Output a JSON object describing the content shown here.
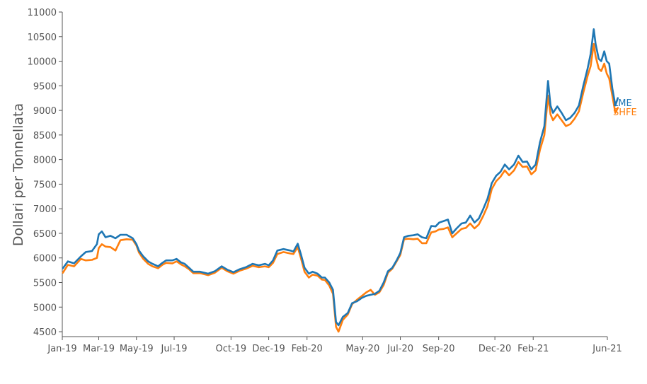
{
  "colors": {
    "lme": "#1f77b4",
    "shfe": "#ff7f0e",
    "axis": "#555555"
  },
  "chart_data": {
    "type": "line",
    "title": "",
    "xlabel": "",
    "ylabel": "Dollari per Tonnellata",
    "x_range": [
      "2019-01-01",
      "2021-06-01"
    ],
    "ylim": [
      4400,
      11000
    ],
    "grid": false,
    "legend": "end-of-line labels",
    "yticks": [
      4500,
      5000,
      5500,
      6000,
      6500,
      7000,
      7500,
      8000,
      8500,
      9000,
      9500,
      10000,
      10500,
      11000
    ],
    "xticks": [
      {
        "date": "2019-01-01",
        "label": "Jan-19"
      },
      {
        "date": "2019-03-01",
        "label": "Mar-19"
      },
      {
        "date": "2019-05-01",
        "label": "May-19"
      },
      {
        "date": "2019-07-01",
        "label": "Jul-19"
      },
      {
        "date": "2019-10-01",
        "label": "Oct-19"
      },
      {
        "date": "2019-12-01",
        "label": "Dec-19"
      },
      {
        "date": "2020-02-01",
        "label": "Feb-20"
      },
      {
        "date": "2020-05-01",
        "label": "May-20"
      },
      {
        "date": "2020-07-01",
        "label": "Jul-20"
      },
      {
        "date": "2020-09-01",
        "label": "Sep-20"
      },
      {
        "date": "2020-12-01",
        "label": "Dec-20"
      },
      {
        "date": "2021-02-01",
        "label": "Feb-21"
      },
      {
        "date": "2021-06-01",
        "label": "Jun-21"
      }
    ],
    "series": [
      {
        "name": "LME",
        "points": [
          [
            "2019-01-02",
            5790
          ],
          [
            "2019-01-10",
            5930
          ],
          [
            "2019-01-20",
            5890
          ],
          [
            "2019-01-31",
            6030
          ],
          [
            "2019-02-08",
            6120
          ],
          [
            "2019-02-18",
            6140
          ],
          [
            "2019-02-26",
            6280
          ],
          [
            "2019-03-01",
            6480
          ],
          [
            "2019-03-06",
            6540
          ],
          [
            "2019-03-12",
            6420
          ],
          [
            "2019-03-20",
            6450
          ],
          [
            "2019-03-28",
            6400
          ],
          [
            "2019-04-05",
            6470
          ],
          [
            "2019-04-15",
            6470
          ],
          [
            "2019-04-25",
            6400
          ],
          [
            "2019-05-01",
            6280
          ],
          [
            "2019-05-05",
            6150
          ],
          [
            "2019-05-12",
            6030
          ],
          [
            "2019-05-20",
            5930
          ],
          [
            "2019-05-27",
            5880
          ],
          [
            "2019-06-05",
            5830
          ],
          [
            "2019-06-12",
            5900
          ],
          [
            "2019-06-18",
            5950
          ],
          [
            "2019-06-28",
            5950
          ],
          [
            "2019-07-05",
            5980
          ],
          [
            "2019-07-12",
            5910
          ],
          [
            "2019-07-18",
            5880
          ],
          [
            "2019-07-25",
            5800
          ],
          [
            "2019-08-01",
            5720
          ],
          [
            "2019-08-12",
            5720
          ],
          [
            "2019-08-25",
            5680
          ],
          [
            "2019-09-05",
            5730
          ],
          [
            "2019-09-16",
            5830
          ],
          [
            "2019-09-25",
            5760
          ],
          [
            "2019-10-05",
            5710
          ],
          [
            "2019-10-15",
            5770
          ],
          [
            "2019-10-25",
            5810
          ],
          [
            "2019-11-05",
            5880
          ],
          [
            "2019-11-15",
            5850
          ],
          [
            "2019-11-25",
            5880
          ],
          [
            "2019-12-01",
            5850
          ],
          [
            "2019-12-08",
            5950
          ],
          [
            "2019-12-15",
            6150
          ],
          [
            "2019-12-25",
            6180
          ],
          [
            "2020-01-05",
            6150
          ],
          [
            "2020-01-10",
            6130
          ],
          [
            "2020-01-17",
            6290
          ],
          [
            "2020-01-22",
            6080
          ],
          [
            "2020-01-28",
            5800
          ],
          [
            "2020-02-04",
            5680
          ],
          [
            "2020-02-10",
            5720
          ],
          [
            "2020-02-18",
            5680
          ],
          [
            "2020-02-25",
            5600
          ],
          [
            "2020-03-01",
            5600
          ],
          [
            "2020-03-08",
            5500
          ],
          [
            "2020-03-14",
            5350
          ],
          [
            "2020-03-19",
            4700
          ],
          [
            "2020-03-23",
            4630
          ],
          [
            "2020-03-30",
            4800
          ],
          [
            "2020-04-07",
            4880
          ],
          [
            "2020-04-14",
            5080
          ],
          [
            "2020-04-22",
            5120
          ],
          [
            "2020-04-30",
            5190
          ],
          [
            "2020-05-07",
            5230
          ],
          [
            "2020-05-14",
            5250
          ],
          [
            "2020-05-21",
            5270
          ],
          [
            "2020-05-28",
            5330
          ],
          [
            "2020-06-04",
            5500
          ],
          [
            "2020-06-11",
            5730
          ],
          [
            "2020-06-18",
            5800
          ],
          [
            "2020-06-25",
            5950
          ],
          [
            "2020-07-01",
            6100
          ],
          [
            "2020-07-07",
            6420
          ],
          [
            "2020-07-14",
            6450
          ],
          [
            "2020-07-22",
            6460
          ],
          [
            "2020-07-29",
            6480
          ],
          [
            "2020-08-05",
            6420
          ],
          [
            "2020-08-12",
            6400
          ],
          [
            "2020-08-20",
            6650
          ],
          [
            "2020-08-27",
            6640
          ],
          [
            "2020-09-02",
            6720
          ],
          [
            "2020-09-09",
            6750
          ],
          [
            "2020-09-16",
            6780
          ],
          [
            "2020-09-23",
            6500
          ],
          [
            "2020-09-30",
            6600
          ],
          [
            "2020-10-08",
            6700
          ],
          [
            "2020-10-15",
            6720
          ],
          [
            "2020-10-22",
            6860
          ],
          [
            "2020-10-29",
            6720
          ],
          [
            "2020-11-05",
            6800
          ],
          [
            "2020-11-12",
            6990
          ],
          [
            "2020-11-19",
            7200
          ],
          [
            "2020-11-26",
            7520
          ],
          [
            "2020-12-03",
            7670
          ],
          [
            "2020-12-10",
            7750
          ],
          [
            "2020-12-17",
            7900
          ],
          [
            "2020-12-24",
            7800
          ],
          [
            "2021-01-01",
            7900
          ],
          [
            "2021-01-08",
            8080
          ],
          [
            "2021-01-15",
            7950
          ],
          [
            "2021-01-22",
            7960
          ],
          [
            "2021-01-29",
            7800
          ],
          [
            "2021-02-05",
            7900
          ],
          [
            "2021-02-12",
            8350
          ],
          [
            "2021-02-19",
            8680
          ],
          [
            "2021-02-25",
            9600
          ],
          [
            "2021-03-01",
            9100
          ],
          [
            "2021-03-05",
            8950
          ],
          [
            "2021-03-12",
            9080
          ],
          [
            "2021-03-19",
            8950
          ],
          [
            "2021-03-26",
            8800
          ],
          [
            "2021-04-02",
            8850
          ],
          [
            "2021-04-09",
            8950
          ],
          [
            "2021-04-16",
            9100
          ],
          [
            "2021-04-23",
            9500
          ],
          [
            "2021-04-30",
            9850
          ],
          [
            "2021-05-05",
            10150
          ],
          [
            "2021-05-10",
            10650
          ],
          [
            "2021-05-13",
            10350
          ],
          [
            "2021-05-18",
            10050
          ],
          [
            "2021-05-22",
            10000
          ],
          [
            "2021-05-27",
            10200
          ],
          [
            "2021-05-31",
            10000
          ],
          [
            "2021-06-04",
            9950
          ],
          [
            "2021-06-09",
            9450
          ],
          [
            "2021-06-14",
            9100
          ],
          [
            "2021-06-18",
            9250
          ]
        ]
      },
      {
        "name": "SHFE",
        "points": [
          [
            "2019-01-02",
            5700
          ],
          [
            "2019-01-10",
            5860
          ],
          [
            "2019-01-20",
            5830
          ],
          [
            "2019-01-31",
            5980
          ],
          [
            "2019-02-08",
            5950
          ],
          [
            "2019-02-18",
            5960
          ],
          [
            "2019-02-26",
            6000
          ],
          [
            "2019-03-01",
            6200
          ],
          [
            "2019-03-06",
            6280
          ],
          [
            "2019-03-12",
            6230
          ],
          [
            "2019-03-20",
            6220
          ],
          [
            "2019-03-28",
            6150
          ],
          [
            "2019-04-05",
            6360
          ],
          [
            "2019-04-15",
            6380
          ],
          [
            "2019-04-25",
            6370
          ],
          [
            "2019-05-01",
            6250
          ],
          [
            "2019-05-05",
            6110
          ],
          [
            "2019-05-12",
            5980
          ],
          [
            "2019-05-20",
            5880
          ],
          [
            "2019-05-27",
            5830
          ],
          [
            "2019-06-05",
            5790
          ],
          [
            "2019-06-12",
            5860
          ],
          [
            "2019-06-18",
            5900
          ],
          [
            "2019-06-28",
            5890
          ],
          [
            "2019-07-05",
            5930
          ],
          [
            "2019-07-12",
            5870
          ],
          [
            "2019-07-18",
            5830
          ],
          [
            "2019-07-25",
            5770
          ],
          [
            "2019-08-01",
            5690
          ],
          [
            "2019-08-12",
            5690
          ],
          [
            "2019-08-25",
            5650
          ],
          [
            "2019-09-05",
            5700
          ],
          [
            "2019-09-16",
            5800
          ],
          [
            "2019-09-25",
            5730
          ],
          [
            "2019-10-05",
            5680
          ],
          [
            "2019-10-15",
            5740
          ],
          [
            "2019-10-25",
            5780
          ],
          [
            "2019-11-05",
            5840
          ],
          [
            "2019-11-15",
            5810
          ],
          [
            "2019-11-25",
            5830
          ],
          [
            "2019-12-01",
            5810
          ],
          [
            "2019-12-08",
            5900
          ],
          [
            "2019-12-15",
            6080
          ],
          [
            "2019-12-25",
            6120
          ],
          [
            "2020-01-05",
            6090
          ],
          [
            "2020-01-10",
            6080
          ],
          [
            "2020-01-17",
            6220
          ],
          [
            "2020-01-22",
            6000
          ],
          [
            "2020-01-28",
            5720
          ],
          [
            "2020-02-04",
            5600
          ],
          [
            "2020-02-10",
            5660
          ],
          [
            "2020-02-18",
            5640
          ],
          [
            "2020-02-25",
            5560
          ],
          [
            "2020-03-01",
            5550
          ],
          [
            "2020-03-08",
            5440
          ],
          [
            "2020-03-14",
            5270
          ],
          [
            "2020-03-19",
            4600
          ],
          [
            "2020-03-23",
            4500
          ],
          [
            "2020-03-30",
            4740
          ],
          [
            "2020-04-07",
            4850
          ],
          [
            "2020-04-14",
            5060
          ],
          [
            "2020-04-22",
            5150
          ],
          [
            "2020-04-30",
            5230
          ],
          [
            "2020-05-07",
            5300
          ],
          [
            "2020-05-14",
            5350
          ],
          [
            "2020-05-21",
            5250
          ],
          [
            "2020-05-28",
            5300
          ],
          [
            "2020-06-04",
            5450
          ],
          [
            "2020-06-11",
            5700
          ],
          [
            "2020-06-18",
            5780
          ],
          [
            "2020-06-25",
            5930
          ],
          [
            "2020-07-01",
            6060
          ],
          [
            "2020-07-07",
            6380
          ],
          [
            "2020-07-14",
            6390
          ],
          [
            "2020-07-22",
            6380
          ],
          [
            "2020-07-29",
            6390
          ],
          [
            "2020-08-05",
            6300
          ],
          [
            "2020-08-12",
            6300
          ],
          [
            "2020-08-20",
            6520
          ],
          [
            "2020-08-27",
            6540
          ],
          [
            "2020-09-02",
            6580
          ],
          [
            "2020-09-09",
            6590
          ],
          [
            "2020-09-16",
            6620
          ],
          [
            "2020-09-23",
            6420
          ],
          [
            "2020-09-30",
            6500
          ],
          [
            "2020-10-08",
            6590
          ],
          [
            "2020-10-15",
            6610
          ],
          [
            "2020-10-22",
            6700
          ],
          [
            "2020-10-29",
            6600
          ],
          [
            "2020-11-05",
            6680
          ],
          [
            "2020-11-12",
            6850
          ],
          [
            "2020-11-19",
            7050
          ],
          [
            "2020-11-26",
            7400
          ],
          [
            "2020-12-03",
            7560
          ],
          [
            "2020-12-10",
            7650
          ],
          [
            "2020-12-17",
            7780
          ],
          [
            "2020-12-24",
            7680
          ],
          [
            "2021-01-01",
            7780
          ],
          [
            "2021-01-08",
            7950
          ],
          [
            "2021-01-15",
            7850
          ],
          [
            "2021-01-22",
            7860
          ],
          [
            "2021-01-29",
            7700
          ],
          [
            "2021-02-05",
            7780
          ],
          [
            "2021-02-12",
            8200
          ],
          [
            "2021-02-19",
            8500
          ],
          [
            "2021-02-25",
            9300
          ],
          [
            "2021-03-01",
            8920
          ],
          [
            "2021-03-05",
            8800
          ],
          [
            "2021-03-12",
            8920
          ],
          [
            "2021-03-19",
            8800
          ],
          [
            "2021-03-26",
            8680
          ],
          [
            "2021-04-02",
            8720
          ],
          [
            "2021-04-09",
            8830
          ],
          [
            "2021-04-16",
            8980
          ],
          [
            "2021-04-23",
            9360
          ],
          [
            "2021-04-30",
            9700
          ],
          [
            "2021-05-05",
            9900
          ],
          [
            "2021-05-10",
            10350
          ],
          [
            "2021-05-13",
            10100
          ],
          [
            "2021-05-18",
            9850
          ],
          [
            "2021-05-22",
            9800
          ],
          [
            "2021-05-27",
            9950
          ],
          [
            "2021-05-31",
            9750
          ],
          [
            "2021-06-04",
            9650
          ],
          [
            "2021-06-09",
            9300
          ],
          [
            "2021-06-14",
            8950
          ],
          [
            "2021-06-18",
            9050
          ]
        ]
      }
    ]
  }
}
